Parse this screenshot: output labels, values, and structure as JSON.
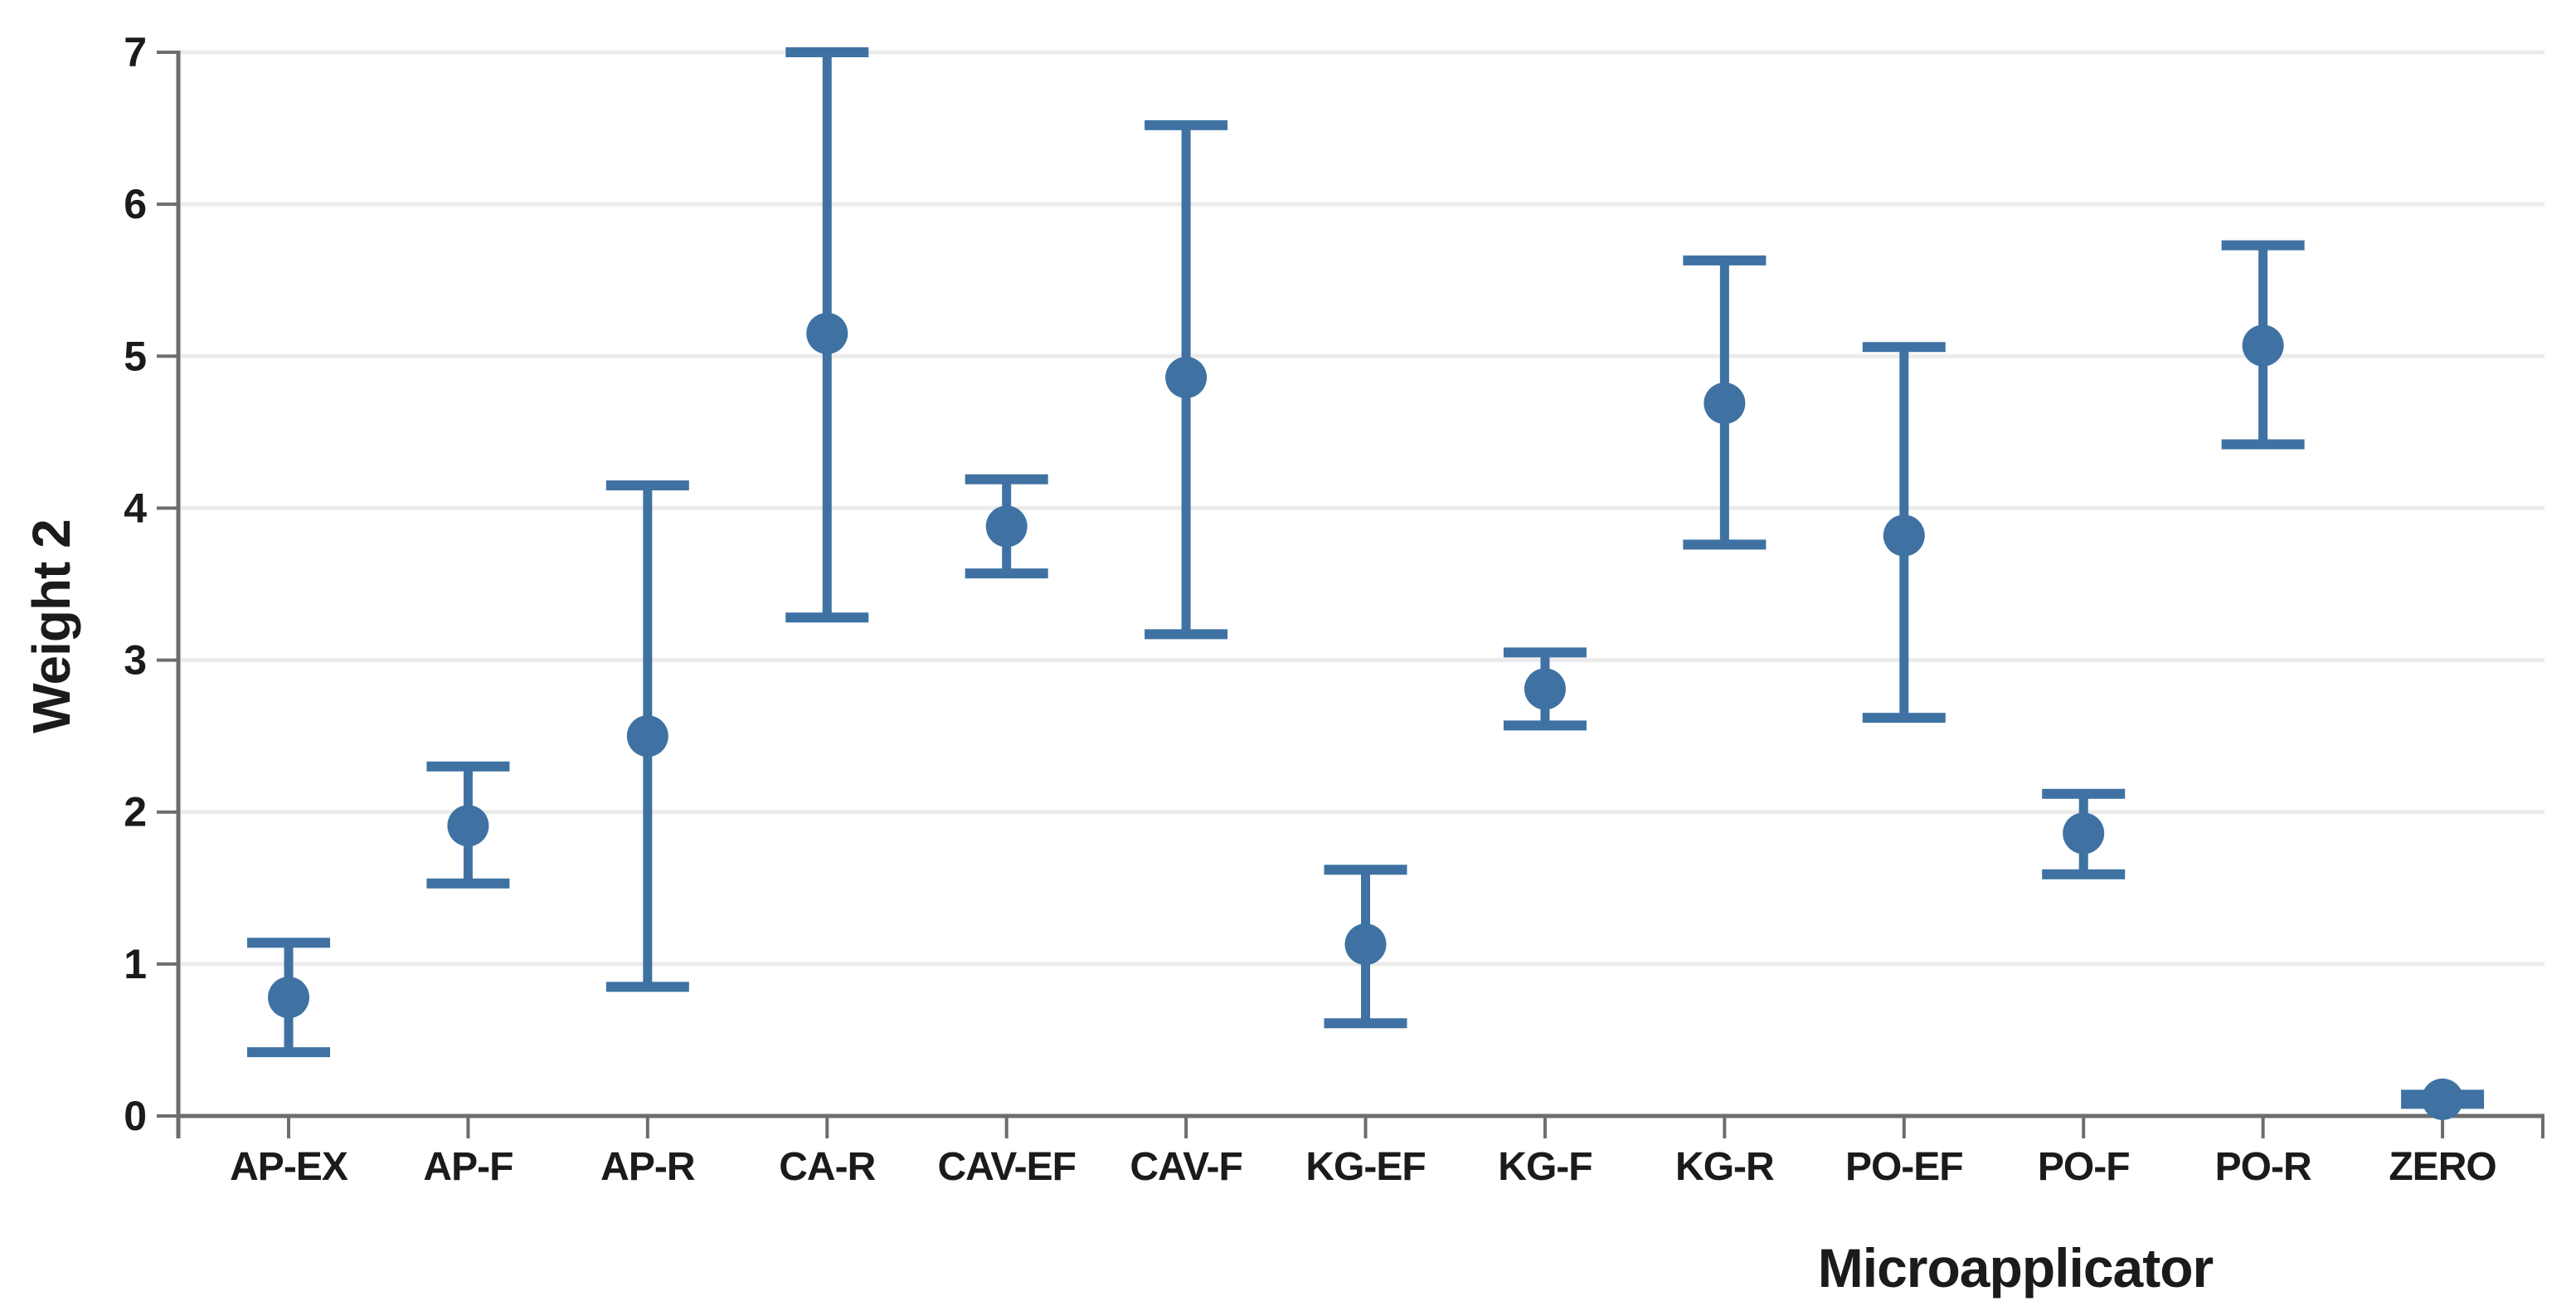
{
  "chart_data": {
    "type": "scatter",
    "subtype": "mean-with-error-bars",
    "title": "",
    "xlabel": "Microapplicator",
    "ylabel": "Weight 2",
    "ylim": [
      0,
      7
    ],
    "yticks": [
      0,
      1,
      2,
      3,
      4,
      5,
      6,
      7
    ],
    "grid": true,
    "legend": "none",
    "categories": [
      "AP-EX",
      "AP-F",
      "AP-R",
      "CA-R",
      "CAV-EF",
      "CAV-F",
      "KG-EF",
      "KG-F",
      "KG-R",
      "PO-EF",
      "PO-F",
      "PO-R",
      "ZERO"
    ],
    "series": [
      {
        "name": "Weight 2",
        "means": [
          0.78,
          1.91,
          2.5,
          5.15,
          3.88,
          4.86,
          1.13,
          2.81,
          4.69,
          3.82,
          1.86,
          5.07,
          0.11
        ],
        "lower": [
          0.42,
          1.53,
          0.85,
          3.28,
          3.57,
          3.17,
          0.61,
          2.57,
          3.76,
          2.62,
          1.59,
          4.42,
          0.08
        ],
        "upper": [
          1.14,
          2.3,
          4.15,
          7.0,
          4.19,
          6.52,
          1.62,
          3.05,
          5.63,
          5.06,
          2.12,
          5.73,
          0.14
        ]
      }
    ]
  },
  "style": {
    "point_color": "#3f72a3",
    "axis_color": "#6d6d6d",
    "grid_color": "#ebebeb",
    "text_color": "#1b1b1b",
    "background": "#ffffff"
  }
}
